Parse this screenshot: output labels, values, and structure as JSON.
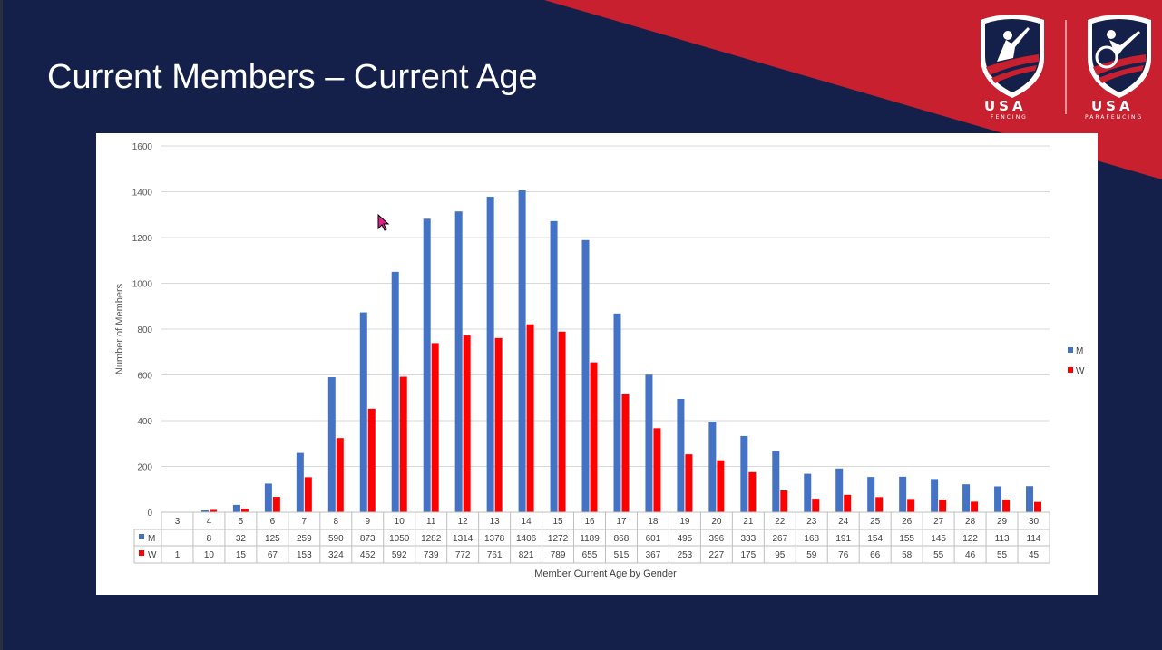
{
  "slide": {
    "title": "Current Members – Current Age",
    "logos": [
      {
        "name": "USA",
        "sub": "FENCING"
      },
      {
        "name": "USA",
        "sub": "PARAFENCING"
      }
    ]
  },
  "colors": {
    "navy": "#14204a",
    "red": "#c8202f",
    "series_m": "#4472c4",
    "series_w": "#ff0000"
  },
  "chart_data": {
    "type": "bar",
    "title": "",
    "xlabel": "Member Current Age by Gender",
    "ylabel": "Number of Members",
    "ylim": [
      0,
      1600
    ],
    "yticks": [
      0,
      200,
      400,
      600,
      800,
      1000,
      1200,
      1400,
      1600
    ],
    "grid": true,
    "legend": "right",
    "categories": [
      "3",
      "4",
      "5",
      "6",
      "7",
      "8",
      "9",
      "10",
      "11",
      "12",
      "13",
      "14",
      "15",
      "16",
      "17",
      "18",
      "19",
      "20",
      "21",
      "22",
      "23",
      "24",
      "25",
      "26",
      "27",
      "28",
      "29",
      "30"
    ],
    "series": [
      {
        "name": "M",
        "color": "#4472c4",
        "values": [
          null,
          8,
          32,
          125,
          259,
          590,
          873,
          1050,
          1282,
          1314,
          1378,
          1406,
          1272,
          1189,
          868,
          601,
          495,
          396,
          333,
          267,
          168,
          191,
          154,
          155,
          145,
          122,
          113,
          114
        ]
      },
      {
        "name": "W",
        "color": "#ff0000",
        "values": [
          1,
          10,
          15,
          67,
          153,
          324,
          452,
          592,
          739,
          772,
          761,
          821,
          789,
          655,
          515,
          367,
          253,
          227,
          175,
          95,
          59,
          76,
          66,
          58,
          55,
          46,
          55,
          45
        ]
      }
    ],
    "data_table": true
  }
}
